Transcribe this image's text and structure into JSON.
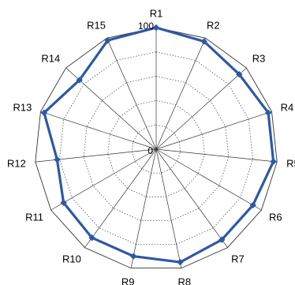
{
  "chart_data": {
    "type": "radar",
    "categories": [
      "R1",
      "R2",
      "R3",
      "R4",
      "R5",
      "R6",
      "R7",
      "R8",
      "R9",
      "R10",
      "R11",
      "R12",
      "R13",
      "R14",
      "R15"
    ],
    "series": [
      {
        "values": [
          100,
          97,
          92,
          97,
          97,
          92,
          92,
          95,
          90,
          90,
          88,
          82,
          97,
          85,
          98
        ]
      }
    ],
    "rlim": [
      0,
      100
    ],
    "tick_labels": [
      "0",
      "100"
    ],
    "grid_levels": 5,
    "grid": true,
    "legend": "none",
    "colors": {
      "series": "#2e58a6",
      "grid": "#555555"
    }
  }
}
